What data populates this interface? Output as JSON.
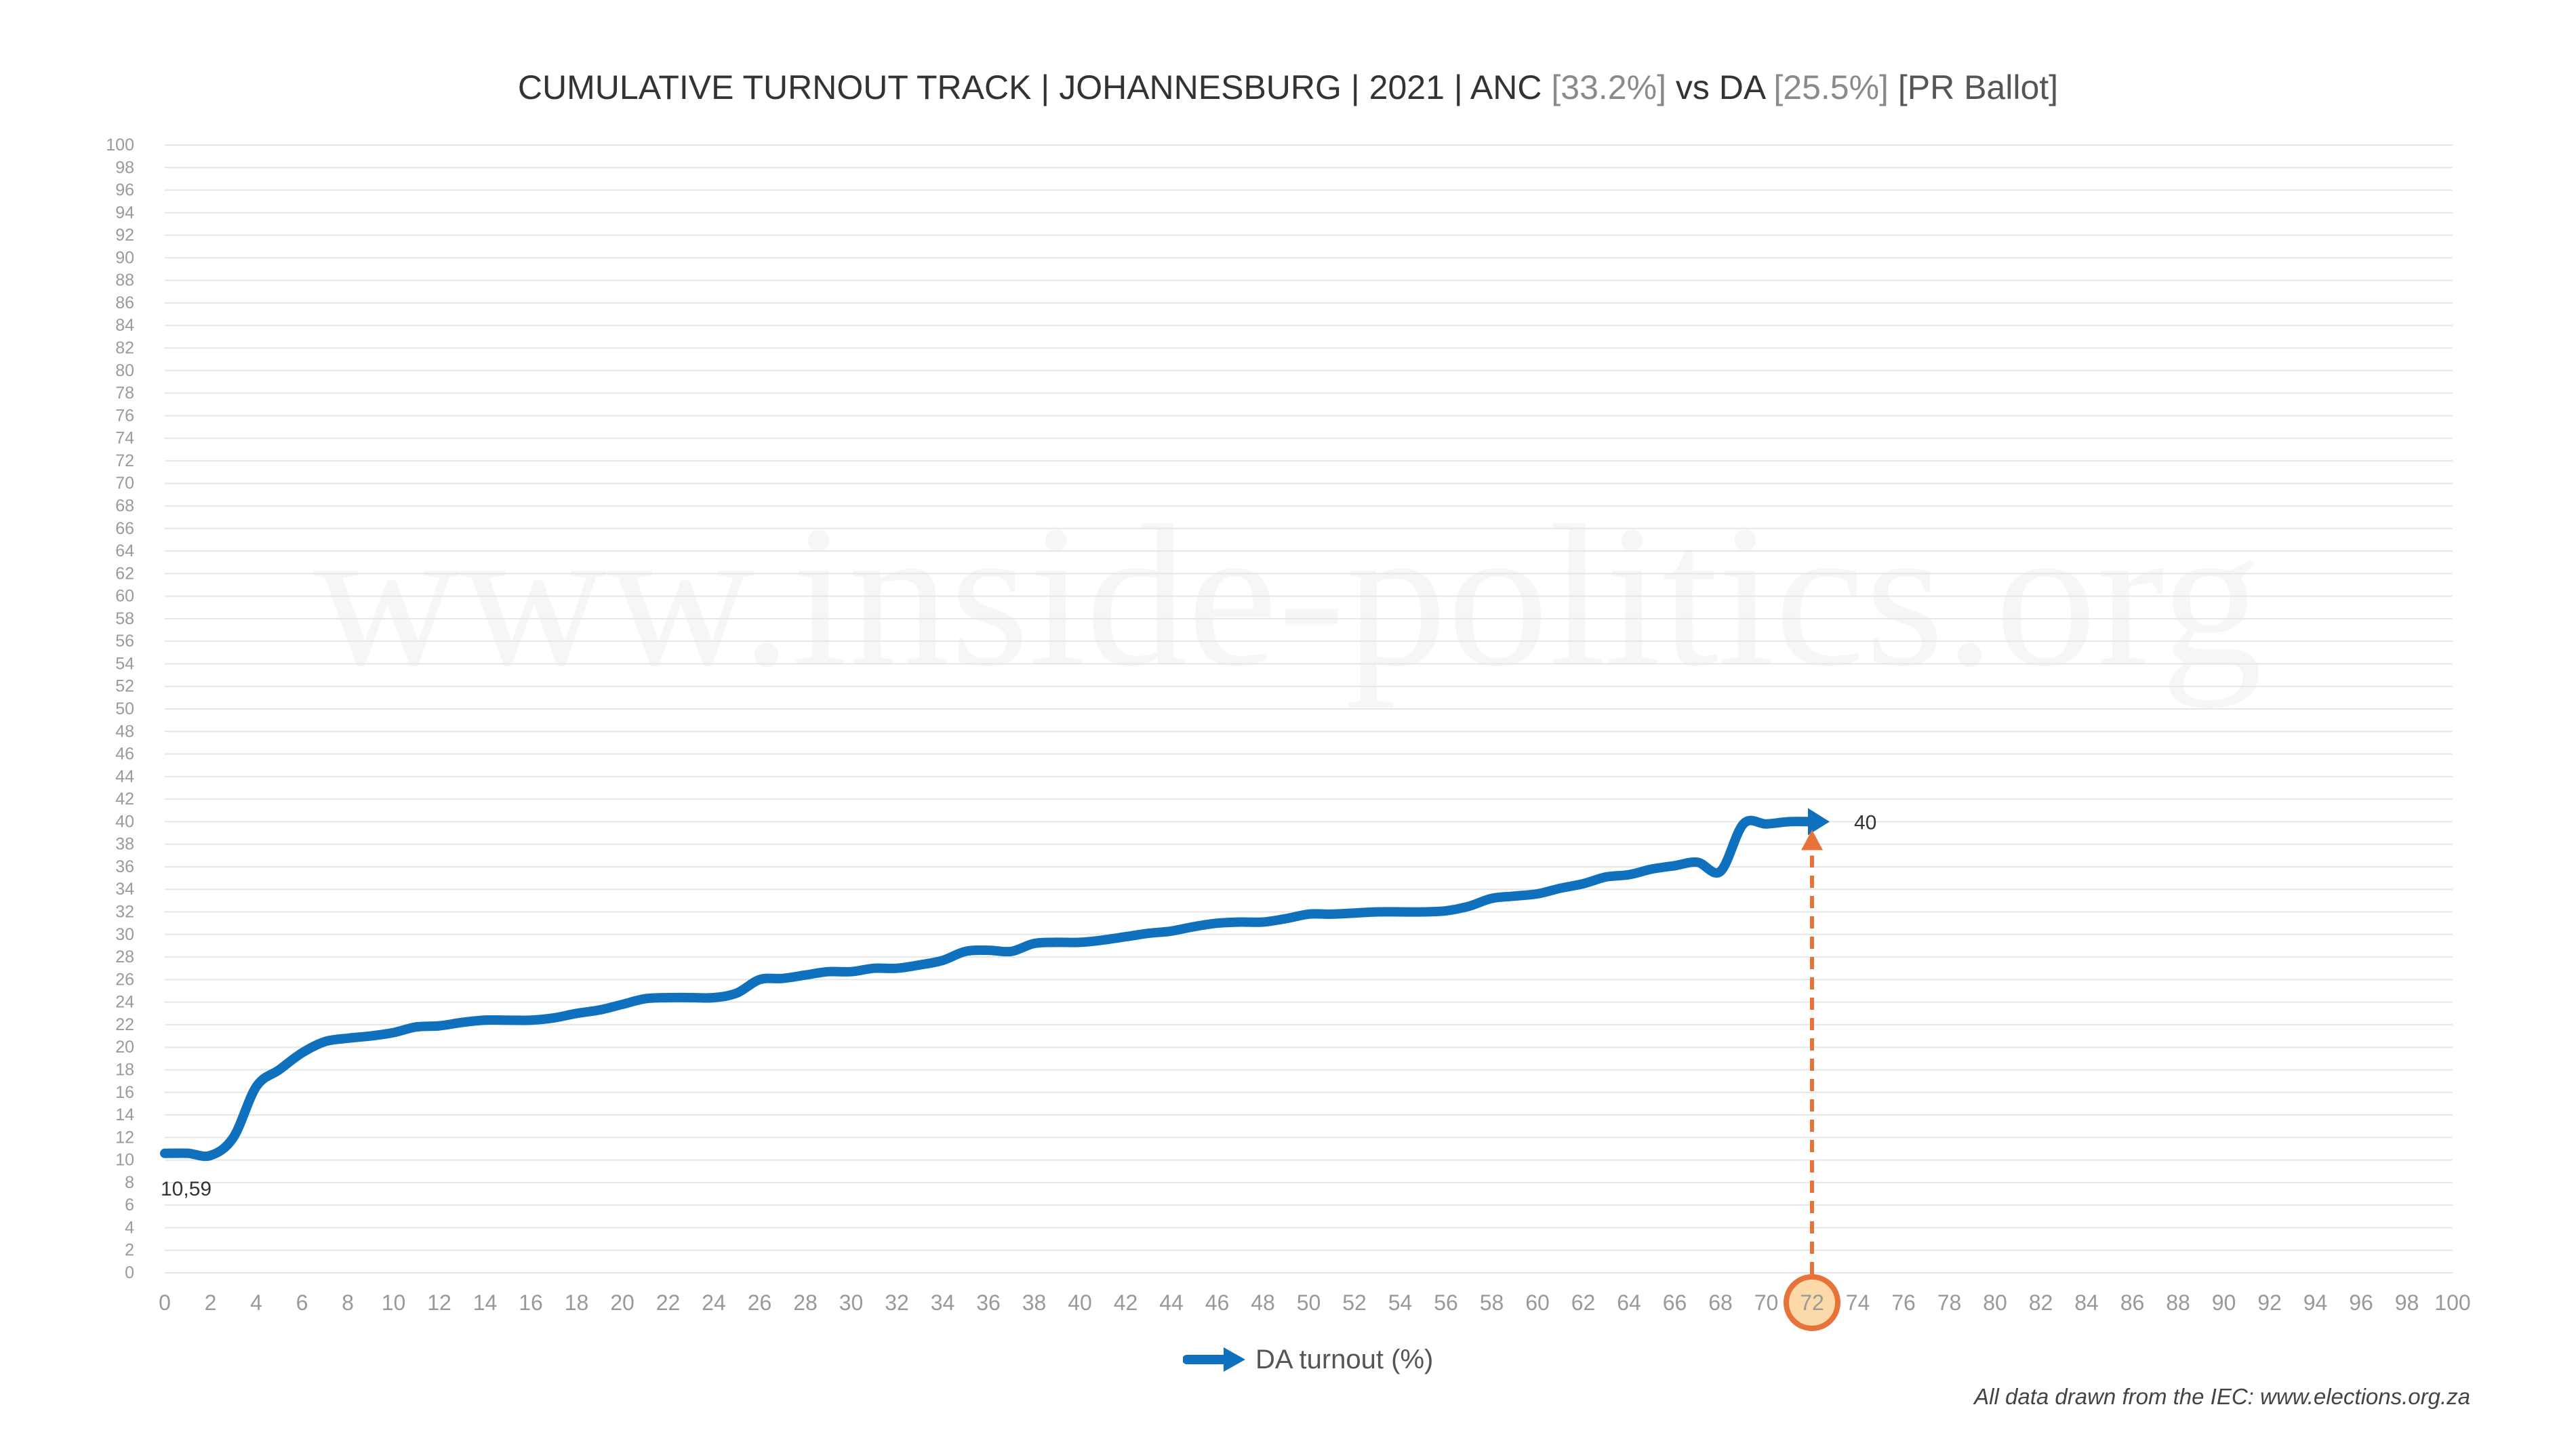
{
  "chart_data": {
    "type": "line",
    "title": {
      "main": "CUMULATIVE TURNOUT TRACK | JOHANNESBURG | 2021 | ANC",
      "anc_pct": "[33.2%]",
      "vs": "vs DA",
      "da_pct": "[25.5%]",
      "ballot": "[PR Ballot]"
    },
    "xlabel": "",
    "ylabel": "",
    "xlim": [
      0,
      100
    ],
    "ylim": [
      0,
      100
    ],
    "x_ticks": [
      "0",
      "2",
      "4",
      "6",
      "8",
      "10",
      "12",
      "14",
      "16",
      "18",
      "20",
      "22",
      "24",
      "26",
      "28",
      "30",
      "32",
      "34",
      "36",
      "38",
      "40",
      "42",
      "44",
      "46",
      "48",
      "50",
      "52",
      "54",
      "56",
      "58",
      "60",
      "62",
      "64",
      "66",
      "68",
      "70",
      "72",
      "74",
      "76",
      "78",
      "80",
      "82",
      "84",
      "86",
      "88",
      "90",
      "92",
      "94",
      "96",
      "98",
      "100"
    ],
    "y_ticks": [
      "0",
      "2",
      "4",
      "6",
      "8",
      "10",
      "12",
      "14",
      "16",
      "18",
      "20",
      "22",
      "24",
      "26",
      "28",
      "30",
      "32",
      "34",
      "36",
      "38",
      "40",
      "42",
      "44",
      "46",
      "48",
      "50",
      "52",
      "54",
      "56",
      "58",
      "60",
      "62",
      "64",
      "66",
      "68",
      "70",
      "72",
      "74",
      "76",
      "78",
      "80",
      "82",
      "84",
      "86",
      "88",
      "90",
      "92",
      "94",
      "96",
      "98",
      "100"
    ],
    "grid": true,
    "legend_position": "bottom-center",
    "series": [
      {
        "name": "DA turnout (%)",
        "color": "#0f71bd",
        "x": [
          0,
          1,
          2,
          3,
          4,
          5,
          6,
          7,
          8,
          9,
          10,
          11,
          12,
          13,
          14,
          15,
          16,
          17,
          18,
          19,
          20,
          21,
          22,
          23,
          24,
          25,
          26,
          27,
          28,
          29,
          30,
          31,
          32,
          33,
          34,
          35,
          36,
          37,
          38,
          39,
          40,
          41,
          42,
          43,
          44,
          45,
          46,
          47,
          48,
          49,
          50,
          51,
          52,
          53,
          54,
          55,
          56,
          57,
          58,
          59,
          60,
          61,
          62,
          63,
          64,
          65,
          66,
          67,
          68,
          69,
          70,
          71,
          72
        ],
        "y": [
          10.59,
          10.6,
          10.4,
          12,
          16.5,
          18,
          19.5,
          20.5,
          20.8,
          21,
          21.3,
          21.8,
          21.9,
          22.2,
          22.4,
          22.4,
          22.4,
          22.6,
          23,
          23.3,
          23.8,
          24.3,
          24.4,
          24.4,
          24.4,
          24.8,
          26,
          26.1,
          26.4,
          26.7,
          26.7,
          27,
          27,
          27.3,
          27.7,
          28.5,
          28.6,
          28.5,
          29.2,
          29.3,
          29.3,
          29.5,
          29.8,
          30.1,
          30.3,
          30.7,
          31,
          31.1,
          31.1,
          31.4,
          31.8,
          31.8,
          31.9,
          32,
          32,
          32,
          32.1,
          32.5,
          33.2,
          33.4,
          33.6,
          34.1,
          34.5,
          35.1,
          35.3,
          35.8,
          36.1,
          36.4,
          35.6,
          39.8,
          39.8,
          40,
          40
        ]
      }
    ],
    "annotations": {
      "start_label": "10,59",
      "end_label": "40",
      "marker_x": 72,
      "marker_label": "72",
      "marker_color": "#e8733a",
      "marker_fill": "#fbd9a9"
    },
    "watermark": "www.inside-politics.org",
    "source_note": "All data drawn from the IEC: www.elections.org.za"
  }
}
